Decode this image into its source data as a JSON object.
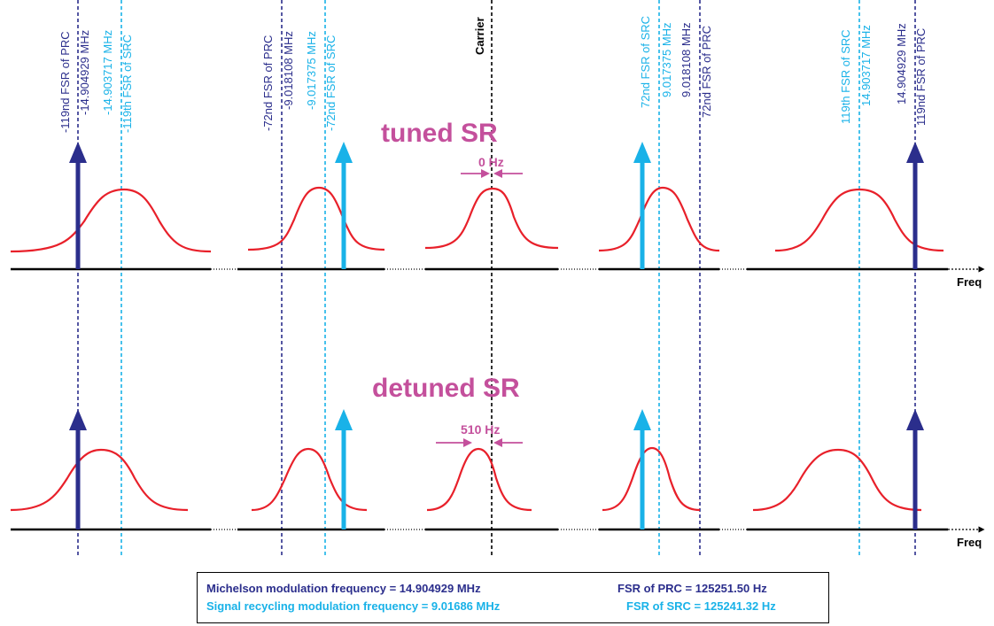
{
  "colors": {
    "prc": "#2b2e8c",
    "src": "#19b2e8",
    "curve": "#e8202a",
    "title": "#c4509c",
    "axis": "#000000"
  },
  "labels": {
    "prc_m119_a": "-119nd FSR of PRC",
    "prc_m119_b": "-14.904929 MHz",
    "src_m119_a": "-14.903717 MHz",
    "src_m119_b": "-119th FSR of SRC",
    "prc_m72_a": "-72nd FSR of PRC",
    "prc_m72_b": "-9.018108 MHz",
    "src_m72_a": "-9.017375 MHz",
    "src_m72_b": "-72nd FSR of SRC",
    "carrier": "Carrier",
    "src_p72_a": "72nd FSR of SRC",
    "src_p72_b": "9.017375 MHz",
    "prc_p72_a": "9.018108 MHz",
    "prc_p72_b": "72nd FSR of PRC",
    "src_p119_a": "119th FSR of SRC",
    "src_p119_b": "14.903717 MHz",
    "prc_p119_a": "14.904929 MHz",
    "prc_p119_b": "119nd FSR of PRC"
  },
  "tuned": {
    "title": "tuned SR",
    "offset": "0 Hz",
    "axis_label": "Freq"
  },
  "detuned": {
    "title": "detuned SR",
    "offset": "510 Hz",
    "axis_label": "Freq"
  },
  "legend": {
    "michelson": "Michelson modulation frequency = 14.904929 MHz",
    "prc_fsr": "FSR of PRC = 125251.50 Hz",
    "signal": "Signal recycling modulation frequency = 9.01686 MHz",
    "src_fsr": "FSR of SRC = 125241.32 Hz"
  }
}
